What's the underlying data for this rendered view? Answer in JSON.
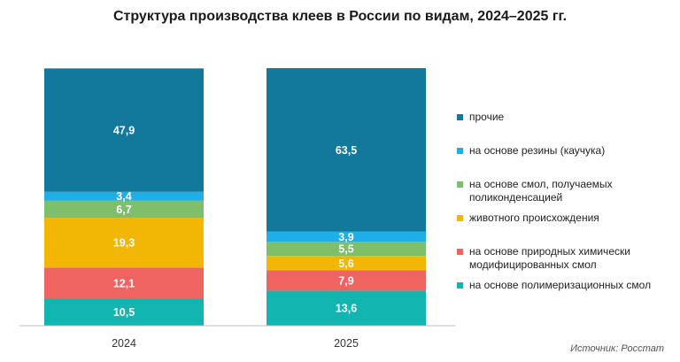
{
  "chart_data": {
    "type": "bar",
    "stacked": true,
    "title": "Структура производства клеев в России по видам, 2024–2025 гг.",
    "categories": [
      "2024",
      "2025"
    ],
    "ylim": [
      0,
      100
    ],
    "grid": false,
    "legend_position": "right",
    "series": [
      {
        "name": "на основе полимеризационных смол",
        "color": "#12b5b0",
        "values": [
          10.5,
          13.6
        ],
        "labels": [
          "10,5",
          "13,6"
        ]
      },
      {
        "name": "на основе природных химически модифицированных смол",
        "color": "#ef6461",
        "values": [
          12.1,
          7.9
        ],
        "labels": [
          "12,1",
          "7,9"
        ]
      },
      {
        "name": "животного происхождения",
        "color": "#f2b705",
        "values": [
          19.3,
          5.6
        ],
        "labels": [
          "19,3",
          "5,6"
        ]
      },
      {
        "name": "на основе смол, получаемых поликонденсацией",
        "color": "#7dbf6a",
        "values": [
          6.7,
          5.5
        ],
        "labels": [
          "6,7",
          "5,5"
        ]
      },
      {
        "name": "на основе резины (каучука)",
        "color": "#1eaee8",
        "values": [
          3.4,
          3.9
        ],
        "labels": [
          "3,4",
          "3,9"
        ]
      },
      {
        "name": "прочие",
        "color": "#13799c",
        "values": [
          47.9,
          63.5
        ],
        "labels": [
          "47,9",
          "63,5"
        ]
      }
    ]
  },
  "legend_order": [
    5,
    4,
    3,
    2,
    1,
    0
  ],
  "source": "Источник: Росстат"
}
